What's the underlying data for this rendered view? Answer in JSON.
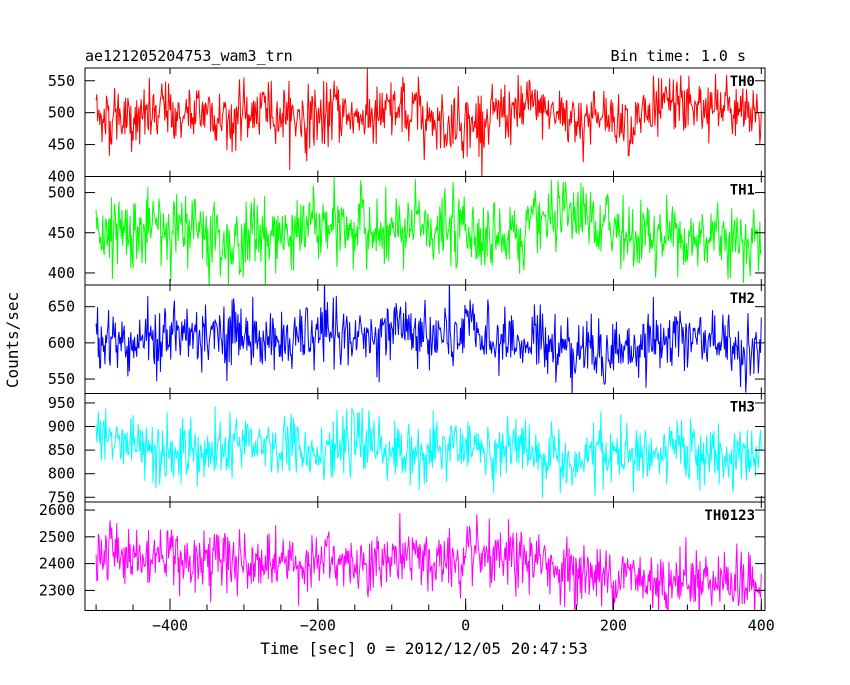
{
  "chart_data": {
    "type": "line",
    "title": "ae121205204753_wam3_trn",
    "bin_time": "Bin time: 1.0 s",
    "xlabel": "Time [sec] 0 = 2012/12/05 20:47:53",
    "ylabel": "Counts/sec",
    "xlim": [
      -515,
      405
    ],
    "x_ticks": [
      -400,
      -200,
      0,
      200,
      400
    ],
    "x_tick_labels": [
      "−400",
      "−200",
      "0",
      "200",
      "400"
    ],
    "x_data_range": [
      -500,
      400
    ],
    "grid": false,
    "series": [
      {
        "name": "TH0",
        "color": "#ff0000",
        "ylim": [
          400,
          570
        ],
        "y_ticks": [
          400,
          450,
          500,
          550
        ],
        "y_tick_labels": [
          "400",
          "450",
          "500",
          "550"
        ],
        "mean_start": 497,
        "mean_end": 495,
        "noise_sd": 24
      },
      {
        "name": "TH1",
        "color": "#00ff00",
        "ylim": [
          385,
          520
        ],
        "y_ticks": [
          400,
          450,
          500
        ],
        "y_tick_labels": [
          "400",
          "450",
          "500"
        ],
        "mean_start": 455,
        "mean_end": 448,
        "noise_sd": 22
      },
      {
        "name": "TH2",
        "color": "#0000ff",
        "ylim": [
          530,
          680
        ],
        "y_ticks": [
          550,
          600,
          650
        ],
        "y_tick_labels": [
          "550",
          "600",
          "650"
        ],
        "mean_start": 610,
        "mean_end": 595,
        "noise_sd": 22
      },
      {
        "name": "TH3",
        "color": "#00ffff",
        "ylim": [
          740,
          970
        ],
        "y_ticks": [
          750,
          800,
          850,
          900,
          950
        ],
        "y_tick_labels": [
          "750",
          "800",
          "850",
          "900",
          "950"
        ],
        "mean_start": 865,
        "mean_end": 830,
        "noise_sd": 32
      },
      {
        "name": "TH0123",
        "color": "#ff00ff",
        "ylim": [
          2225,
          2630
        ],
        "y_ticks": [
          2300,
          2400,
          2500,
          2600
        ],
        "y_tick_labels": [
          "2300",
          "2400",
          "2500",
          "2600"
        ],
        "mean_start": 2450,
        "mean_end": 2340,
        "noise_sd": 55
      }
    ]
  }
}
